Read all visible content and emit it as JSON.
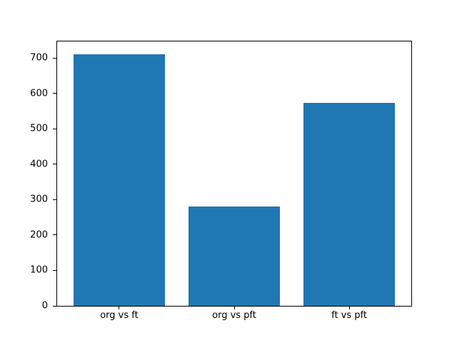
{
  "chart_data": {
    "type": "bar",
    "title": "",
    "xlabel": "",
    "ylabel": "",
    "categories": [
      "org vs ft",
      "org vs pft",
      "ft vs pft"
    ],
    "values": [
      711,
      281,
      574
    ],
    "yticks": [
      0,
      100,
      200,
      300,
      400,
      500,
      600,
      700
    ],
    "ytick_labels": [
      "0",
      "100",
      "200",
      "300",
      "400",
      "500",
      "600",
      "700"
    ],
    "ylim": [
      0,
      746.5
    ],
    "xlim": [
      -0.54,
      2.54
    ],
    "bar_width": 0.8,
    "bar_color": "#1f77b4",
    "spine_color": "#000000",
    "background_color": "#ffffff",
    "grid": false,
    "legend": false
  }
}
